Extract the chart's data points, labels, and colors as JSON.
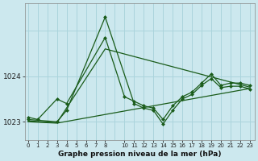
{
  "xlabel": "Graphe pression niveau de la mer (hPa)",
  "bg_color": "#cce8ee",
  "grid_color": "#aad4dc",
  "line_color": "#1a5c1a",
  "ylim": [
    1022.6,
    1025.6
  ],
  "yticks": [
    1023,
    1024
  ],
  "xlim": [
    -0.3,
    23.5
  ],
  "series1_x": [
    0,
    1,
    3,
    4,
    8,
    10,
    11,
    12,
    13,
    14,
    15,
    16,
    17,
    18,
    19,
    20,
    21,
    22,
    23
  ],
  "series1_y": [
    1023.1,
    1023.05,
    1023.5,
    1023.4,
    1024.85,
    1023.55,
    1023.45,
    1023.35,
    1023.3,
    1023.05,
    1023.35,
    1023.55,
    1023.65,
    1023.85,
    1024.05,
    1023.8,
    1023.85,
    1023.85,
    1023.8
  ],
  "series2_x": [
    0,
    3,
    4,
    8,
    11,
    12,
    13,
    14,
    15,
    16,
    17,
    18,
    19,
    20,
    21,
    22,
    23
  ],
  "series2_y": [
    1023.05,
    1023.0,
    1023.25,
    1025.3,
    1023.4,
    1023.3,
    1023.25,
    1022.95,
    1023.25,
    1023.5,
    1023.6,
    1023.8,
    1023.95,
    1023.75,
    1023.78,
    1023.78,
    1023.72
  ],
  "series3_x": [
    0,
    3,
    23
  ],
  "series3_y": [
    1023.0,
    1022.97,
    1023.73
  ],
  "series4_x": [
    0,
    3,
    8,
    23
  ],
  "series4_y": [
    1023.02,
    1022.98,
    1024.6,
    1023.76
  ]
}
